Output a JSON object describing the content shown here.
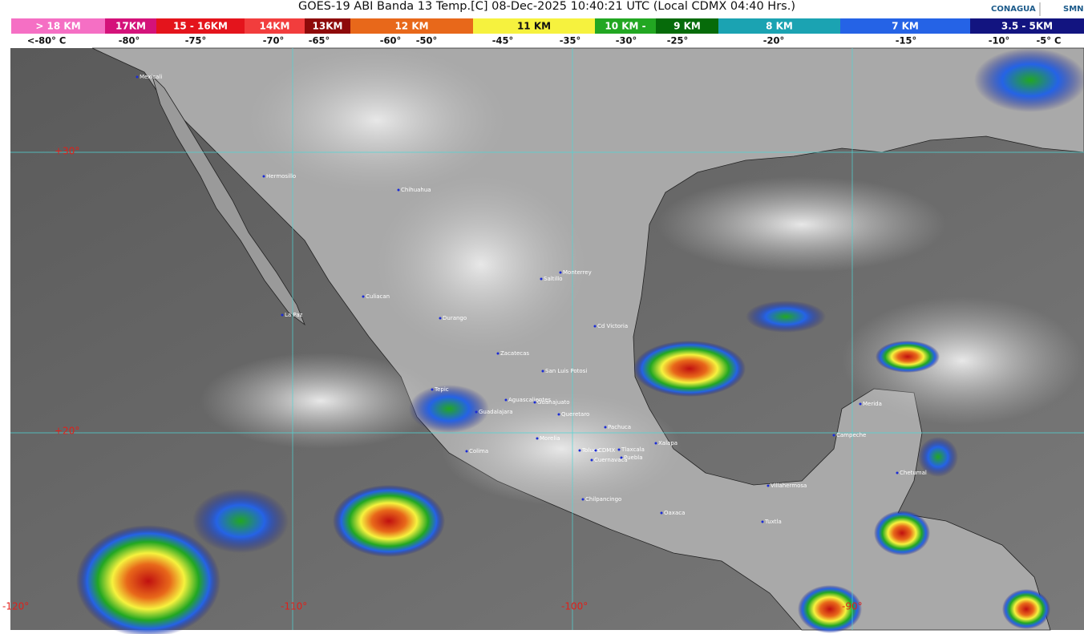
{
  "header": {
    "title": "GOES-19 ABI Banda 13 Temp.[C] 08-Dec-2025 10:40:21 UTC (Local CDMX  04:40 Hrs.)",
    "logos": [
      "CONAGUA",
      "SMN"
    ]
  },
  "scale": {
    "altitudes": [
      {
        "label": "> 18 KM",
        "color": "#f56fc4"
      },
      {
        "label": "17KM",
        "color": "#d4127a"
      },
      {
        "label": "15 - 16KM",
        "color": "#e4141c"
      },
      {
        "label": "14KM",
        "color": "#f23d3d"
      },
      {
        "label": "13KM",
        "color": "#8e0a0a"
      },
      {
        "label": "12 KM",
        "color": "#e8681a"
      },
      {
        "label": "11 KM",
        "color": "#f6f23e"
      },
      {
        "label": "10 KM -",
        "color": "#22a722"
      },
      {
        "label": "9 KM",
        "color": "#066b0a"
      },
      {
        "label": "8 KM",
        "color": "#1ba3b2"
      },
      {
        "label": "7 KM",
        "color": "#2563e6"
      },
      {
        "label": "3.5 - 5KM",
        "color": "#121480"
      }
    ],
    "temperatures": [
      "<-80° C",
      "-80°",
      "-75°",
      "-70°",
      "-65°",
      "-60°",
      "-50°",
      "-45°",
      "-35°",
      "-30°",
      "-25°",
      "-20°",
      "-15°",
      "-10°",
      "-5° C"
    ]
  },
  "map": {
    "latitude_labels": [
      "+30°",
      "+20°"
    ],
    "longitude_labels": [
      "-120°",
      "-110°",
      "-100°",
      "-90°"
    ],
    "cities": [
      "Mexicali",
      "Hermosillo",
      "Chihuahua",
      "Monterrey",
      "Saltillo",
      "Culiacan",
      "La Paz",
      "Durango",
      "Cd Victoria",
      "Zacatecas",
      "San Luis Potosi",
      "Aguascalientes",
      "Tepic",
      "Guanajuato",
      "Guadalajara",
      "Queretaro",
      "Merida",
      "Pachuca",
      "Campeche",
      "Morelia",
      "Xalapa",
      "Toluca",
      "CDMX",
      "Tlaxcala",
      "Colima",
      "Puebla",
      "Cuernavaca",
      "Chetumal",
      "Villahermosa",
      "Chilpancingo",
      "Oaxaca",
      "Tuxtla"
    ]
  }
}
